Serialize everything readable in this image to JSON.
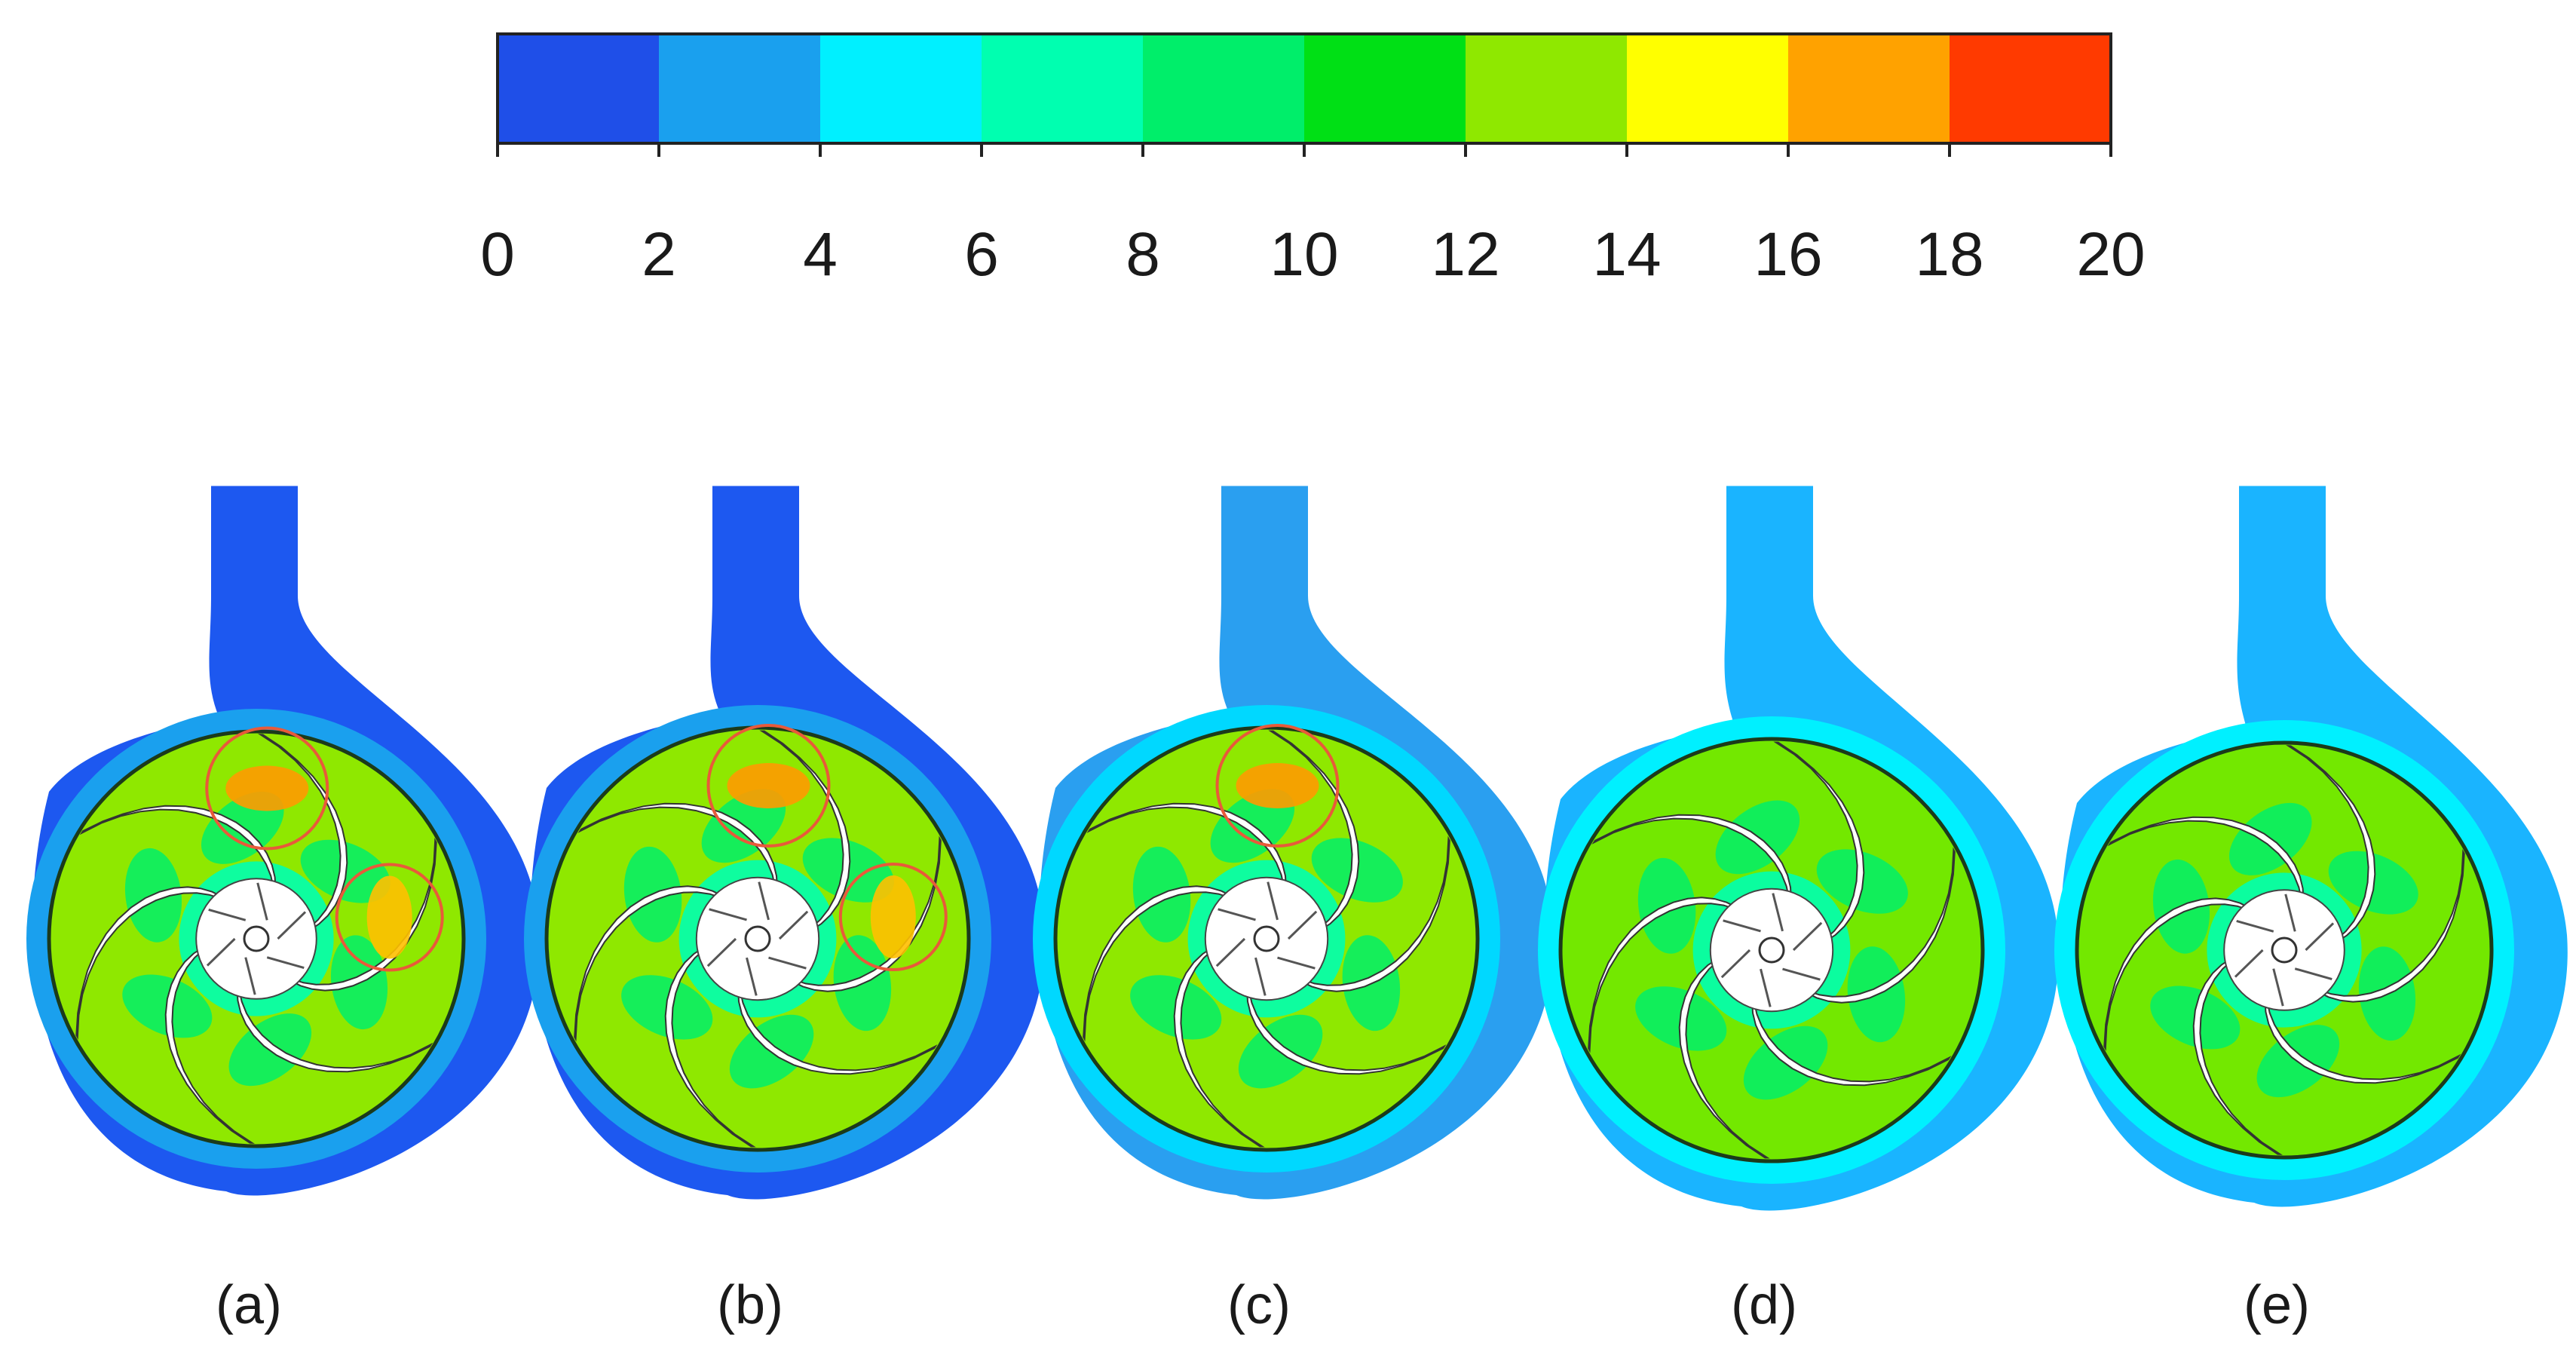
{
  "colorbar": {
    "ticks": [
      "0",
      "2",
      "4",
      "6",
      "8",
      "10",
      "12",
      "14",
      "16",
      "18",
      "20"
    ],
    "colors": [
      "#1f4fe8",
      "#1aa0ee",
      "#00f0ff",
      "#00ffb0",
      "#00ee6a",
      "#00e015",
      "#8fe800",
      "#ffff00",
      "#ffa200",
      "#ff3a00"
    ]
  },
  "panels": [
    {
      "label": "(a)",
      "volute": "#1d58f0",
      "ring": "#1aa0ee",
      "inner": "#8fe800",
      "vane": "#00ee6a",
      "highlights": 2
    },
    {
      "label": "(b)",
      "volute": "#1d58f0",
      "ring": "#1aa0ee",
      "inner": "#8fe800",
      "vane": "#00ee6a",
      "highlights": 2
    },
    {
      "label": "(c)",
      "volute": "#2a9ff0",
      "ring": "#00d8ff",
      "inner": "#8fe800",
      "vane": "#00ee6a",
      "highlights": 1
    },
    {
      "label": "(d)",
      "volute": "#1ab4ff",
      "ring": "#00f0ff",
      "inner": "#73e800",
      "vane": "#00ee6a",
      "highlights": 0
    },
    {
      "label": "(e)",
      "volute": "#1ab4ff",
      "ring": "#00f0ff",
      "inner": "#73e800",
      "vane": "#00ee6a",
      "highlights": 0
    }
  ]
}
